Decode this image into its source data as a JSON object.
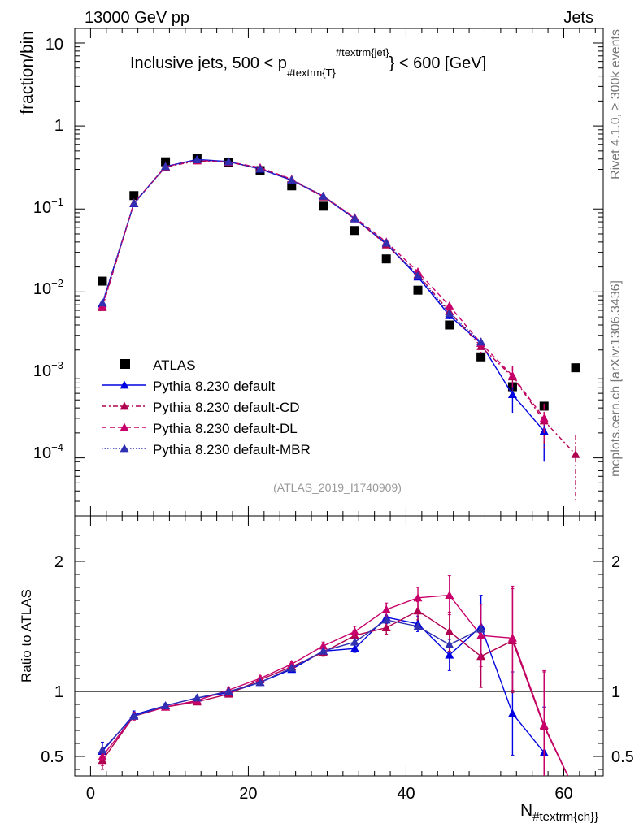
{
  "header": {
    "left": "13000 GeV pp",
    "right": "Jets",
    "side_top": "Rivet 4.1.0, ≥ 300k events",
    "side_bottom": "mcplots.cern.ch [arXiv:1306.3436]",
    "analysis": "(ATLAS_2019_I1740909)"
  },
  "colors": {
    "data": "#000000",
    "default": "#0000e0",
    "cd": "#b0004f",
    "dl": "#c8006a",
    "mbr": "#3030b0"
  },
  "chart_data": [
    {
      "type": "scatter",
      "panel": "main",
      "title_parts": {
        "pre": "Inclusive jets, 500 < p",
        "sub": "#textrm{T}",
        "sup": "#textrm{jet}",
        "post": "} < 600 [GeV]"
      },
      "ylabel": "fraction/bin",
      "yscale": "log",
      "ylim": [
        2e-05,
        15
      ],
      "xlim": [
        -2,
        65
      ],
      "ytick_labels": {
        "t10": "10",
        "t1": "1",
        "tm1": "10^-1",
        "tm2": "10^-2",
        "tm3": "10^-3",
        "tm4": "10^-4"
      },
      "legend_position": "lower-left",
      "x": [
        1.5,
        5.5,
        9.5,
        13.5,
        17.5,
        21.5,
        25.5,
        29.5,
        33.5,
        37.5,
        41.5,
        45.5,
        49.5,
        53.5,
        57.5,
        61.5
      ],
      "series": [
        {
          "key": "data",
          "name": "ATLAS",
          "style": "square",
          "dash": "",
          "values": [
            0.0135,
            0.145,
            0.37,
            0.41,
            0.365,
            0.29,
            0.19,
            0.108,
            0.055,
            0.025,
            0.0105,
            0.004,
            0.00165,
            0.00072,
            0.00042,
            0.00122
          ]
        },
        {
          "key": "default",
          "name": "Pythia 8.230 default",
          "style": "triangle",
          "dash": "",
          "values": [
            0.0072,
            0.116,
            0.325,
            0.395,
            0.372,
            0.303,
            0.222,
            0.142,
            0.076,
            0.038,
            0.0152,
            0.0052,
            0.0024,
            0.00058,
            0.00021,
            null
          ],
          "err": [
            0,
            0,
            0,
            0,
            0,
            0,
            0,
            0,
            0,
            0.002,
            0.001,
            0.0005,
            0.0004,
            0.00023,
            0.00012,
            0
          ]
        },
        {
          "key": "cd",
          "name": "Pythia 8.230 default-CD",
          "style": "triangle",
          "dash": "6,3,2,3",
          "values": [
            0.0065,
            0.118,
            0.32,
            0.38,
            0.365,
            0.31,
            0.225,
            0.14,
            0.077,
            0.037,
            0.0162,
            0.0058,
            0.0022,
            0.00095,
            0.00028,
            0.00011
          ],
          "err": [
            0,
            0,
            0,
            0,
            0,
            0,
            0,
            0,
            0,
            0.002,
            0.001,
            0.0006,
            0.0004,
            0.0003,
            0.00015,
            8e-05
          ]
        },
        {
          "key": "dl",
          "name": "Pythia 8.230 default-DL",
          "style": "triangle",
          "dash": "6,4",
          "values": [
            0.0068,
            0.118,
            0.325,
            0.385,
            0.37,
            0.315,
            0.228,
            0.143,
            0.079,
            0.04,
            0.0175,
            0.0068,
            0.0024,
            0.00098,
            0.0003,
            null
          ],
          "err": [
            0,
            0,
            0,
            0,
            0,
            0,
            0,
            0,
            0,
            0.002,
            0.001,
            0.0006,
            0.0004,
            0.0003,
            0.00015,
            0
          ]
        },
        {
          "key": "mbr",
          "name": "Pythia 8.230 default-MBR",
          "style": "triangle",
          "dash": "1.5,2",
          "values": [
            0.0074,
            0.117,
            0.325,
            0.392,
            0.372,
            0.305,
            0.224,
            0.143,
            0.077,
            0.039,
            0.0158,
            0.0055,
            0.0025,
            null,
            null,
            null
          ],
          "err": [
            0,
            0,
            0,
            0,
            0,
            0,
            0,
            0,
            0,
            0,
            0,
            0,
            0,
            0,
            0,
            0
          ]
        }
      ]
    },
    {
      "type": "line",
      "panel": "ratio",
      "ylabel": "Ratio to ATLAS",
      "xlabel_main": "N",
      "xlabel_sub": "#textrm{ch}}",
      "ylim": [
        0.35,
        2.35
      ],
      "xlim": [
        -2,
        65
      ],
      "yticks": [
        0.5,
        1,
        2
      ],
      "ytick_labels": [
        "0.5",
        "1",
        "2"
      ],
      "xticks": [
        0,
        20,
        40,
        60
      ],
      "xtick_labels": [
        "0",
        "20",
        "40",
        "60"
      ],
      "reference_line": 1,
      "x": [
        1.5,
        5.5,
        9.5,
        13.5,
        17.5,
        21.5,
        25.5,
        29.5,
        33.5,
        37.5,
        41.5,
        45.5,
        49.5,
        53.5,
        57.5
      ],
      "series": [
        {
          "key": "default",
          "values": [
            0.54,
            0.82,
            0.89,
            0.95,
            0.99,
            1.07,
            1.17,
            1.31,
            1.33,
            1.57,
            1.52,
            1.28,
            1.5,
            0.83,
            0.53
          ],
          "err": [
            0.07,
            0.03,
            0.02,
            0.02,
            0.02,
            0.02,
            0.02,
            0.03,
            0.03,
            0.05,
            0.06,
            0.12,
            0.24,
            0.32,
            0.35
          ]
        },
        {
          "key": "cd",
          "values": [
            0.47,
            0.81,
            0.88,
            0.92,
            0.98,
            1.09,
            1.19,
            1.3,
            1.43,
            1.49,
            1.62,
            1.46,
            1.27,
            1.39,
            0.73
          ],
          "err": [
            0.07,
            0.03,
            0.02,
            0.02,
            0.02,
            0.02,
            0.02,
            0.03,
            0.04,
            0.05,
            0.07,
            0.15,
            0.24,
            0.4,
            0.42
          ]
        },
        {
          "key": "dl",
          "values": [
            0.5,
            0.81,
            0.88,
            0.93,
            1.01,
            1.1,
            1.21,
            1.35,
            1.46,
            1.63,
            1.72,
            1.74,
            1.43,
            1.41,
            0.74
          ],
          "err": [
            0.07,
            0.03,
            0.02,
            0.02,
            0.02,
            0.02,
            0.02,
            0.03,
            0.04,
            0.05,
            0.08,
            0.15,
            0.24,
            0.4,
            0.42
          ]
        },
        {
          "key": "mbr",
          "values": [
            0.55,
            0.81,
            0.89,
            0.95,
            1.0,
            1.07,
            1.18,
            1.31,
            1.38,
            1.55,
            1.5,
            1.36,
            1.48,
            null,
            null
          ],
          "err": [
            0,
            0,
            0,
            0,
            0,
            0,
            0,
            0,
            0,
            0,
            0,
            0,
            0,
            0,
            0
          ]
        }
      ]
    }
  ]
}
